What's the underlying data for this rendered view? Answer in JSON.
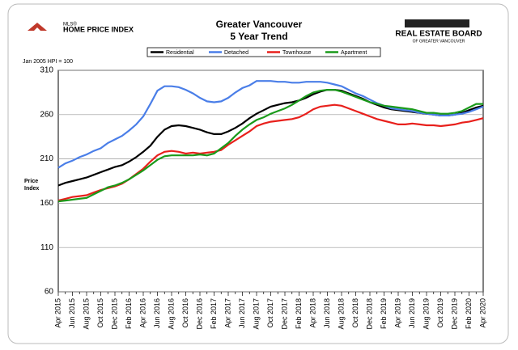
{
  "logos": {
    "left_top": "MLS®",
    "left": "HOME PRICE INDEX",
    "right": "REAL ESTATE BOARD",
    "right_sub": "OF GREATER VANCOUVER"
  },
  "chart_data": {
    "type": "line",
    "title": "Greater Vancouver",
    "subtitle": "5 Year Trend",
    "note": "Jan 2005 HPI = 100",
    "y_label": "Price Index",
    "categories": [
      "Apr 2015",
      null,
      "Jun 2015",
      null,
      "Aug 2015",
      null,
      "Oct 2015",
      null,
      "Dec 2015",
      null,
      "Feb 2016",
      null,
      "Apr 2016",
      null,
      "Jun 2016",
      null,
      "Aug 2016",
      null,
      "Oct 2016",
      null,
      "Dec 2016",
      null,
      "Feb 2017",
      null,
      "Apr 2017",
      null,
      "Jun 2017",
      null,
      "Aug 2017",
      null,
      "Oct 2017",
      null,
      "Dec 2017",
      null,
      "Feb 2018",
      null,
      "Apr 2018",
      null,
      "Jun 2018",
      null,
      "Aug 2018",
      null,
      "Oct 2018",
      null,
      "Dec 2018",
      null,
      "Feb 2019",
      null,
      "Apr 2019",
      null,
      "Jun 2019",
      null,
      "Aug 2019",
      null,
      "Oct 2019",
      null,
      "Dec 2019",
      null,
      "Feb 2020",
      null,
      "Apr 2020"
    ],
    "series": [
      {
        "name": "Residential",
        "color": "#000000",
        "values": [
          180,
          183,
          185,
          187,
          189,
          192,
          195,
          198,
          201,
          203,
          207,
          212,
          218,
          225,
          235,
          243,
          247,
          248,
          247,
          245,
          243,
          240,
          238,
          238,
          241,
          245,
          250,
          256,
          261,
          265,
          269,
          271,
          273,
          274,
          276,
          279,
          283,
          286,
          288,
          288,
          287,
          284,
          281,
          278,
          274,
          271,
          268,
          266,
          265,
          264,
          263,
          262,
          261,
          260,
          259,
          259,
          260,
          262,
          265,
          268,
          270
        ]
      },
      {
        "name": "Detached",
        "color": "#4a7ee8",
        "values": [
          200,
          205,
          208,
          212,
          215,
          219,
          222,
          228,
          232,
          236,
          242,
          249,
          258,
          272,
          287,
          292,
          292,
          291,
          288,
          284,
          279,
          275,
          274,
          275,
          279,
          285,
          290,
          293,
          298,
          298,
          298,
          297,
          297,
          296,
          296,
          297,
          297,
          297,
          296,
          294,
          292,
          288,
          284,
          281,
          277,
          273,
          270,
          267,
          266,
          265,
          264,
          262,
          261,
          260,
          259,
          259,
          260,
          261,
          263,
          266,
          269
        ]
      },
      {
        "name": "Townhouse",
        "color": "#e8201c",
        "values": [
          163,
          165,
          167,
          168,
          169,
          172,
          175,
          177,
          179,
          182,
          187,
          193,
          199,
          207,
          214,
          218,
          219,
          218,
          216,
          217,
          216,
          217,
          218,
          220,
          226,
          231,
          236,
          241,
          247,
          250,
          252,
          253,
          254,
          255,
          257,
          261,
          266,
          269,
          270,
          271,
          270,
          267,
          264,
          261,
          258,
          255,
          253,
          251,
          249,
          249,
          250,
          249,
          248,
          248,
          247,
          248,
          249,
          251,
          252,
          254,
          256
        ]
      },
      {
        "name": "Apartment",
        "color": "#1a9a1a",
        "values": [
          162,
          163,
          164,
          165,
          166,
          170,
          174,
          178,
          180,
          183,
          187,
          192,
          197,
          203,
          209,
          213,
          214,
          214,
          214,
          214,
          215,
          214,
          216,
          222,
          228,
          236,
          243,
          249,
          254,
          257,
          261,
          264,
          267,
          271,
          276,
          281,
          285,
          287,
          288,
          288,
          286,
          283,
          280,
          277,
          274,
          272,
          270,
          269,
          268,
          267,
          266,
          264,
          262,
          262,
          261,
          261,
          262,
          264,
          268,
          272,
          272
        ]
      }
    ],
    "ylim": [
      60,
      310
    ],
    "yticks": [
      60,
      110,
      160,
      210,
      260,
      310
    ],
    "grid": true
  }
}
